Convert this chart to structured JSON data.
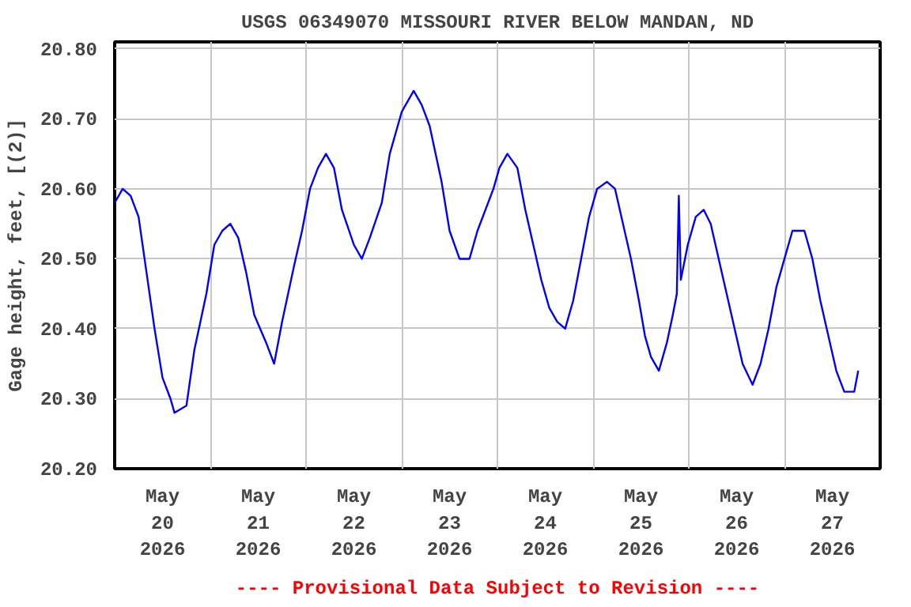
{
  "chart_data": {
    "type": "line",
    "title": "USGS 06349070 MISSOURI RIVER BELOW MANDAN, ND",
    "ylabel": "Gage height, feet, [(2)]",
    "annotations": [
      "---- Provisional Data Subject to Revision ----"
    ],
    "grid": true,
    "marker": "none",
    "line_style": "solid",
    "xlim": [
      "2026-05-20T00:00",
      "2026-05-28T00:00"
    ],
    "xticks": [
      {
        "value": "2026-05-20T00:00",
        "label": null
      },
      {
        "value": "2026-05-20T12:00",
        "label": "May\n20\n2026"
      },
      {
        "value": "2026-05-21T00:00",
        "label": null
      },
      {
        "value": "2026-05-21T12:00",
        "label": "May\n21\n2026"
      },
      {
        "value": "2026-05-22T00:00",
        "label": null
      },
      {
        "value": "2026-05-22T12:00",
        "label": "May\n22\n2026"
      },
      {
        "value": "2026-05-23T00:00",
        "label": null
      },
      {
        "value": "2026-05-23T12:00",
        "label": "May\n23\n2026"
      },
      {
        "value": "2026-05-24T00:00",
        "label": null
      },
      {
        "value": "2026-05-24T12:00",
        "label": "May\n24\n2026"
      },
      {
        "value": "2026-05-25T00:00",
        "label": null
      },
      {
        "value": "2026-05-25T12:00",
        "label": "May\n25\n2026"
      },
      {
        "value": "2026-05-26T00:00",
        "label": null
      },
      {
        "value": "2026-05-26T12:00",
        "label": "May\n26\n2026"
      },
      {
        "value": "2026-05-27T00:00",
        "label": null
      },
      {
        "value": "2026-05-27T12:00",
        "label": "May\n27\n2026"
      },
      {
        "value": "2026-05-28T00:00",
        "label": null
      }
    ],
    "ylim": [
      20.2,
      20.81
    ],
    "yticks": [
      {
        "value": 20.2,
        "label": "20.20"
      },
      {
        "value": 20.3,
        "label": "20.30"
      },
      {
        "value": 20.4,
        "label": "20.40"
      },
      {
        "value": 20.5,
        "label": "20.50"
      },
      {
        "value": 20.6,
        "label": "20.60"
      },
      {
        "value": 20.7,
        "label": "20.70"
      },
      {
        "value": 20.8,
        "label": "20.80"
      }
    ],
    "x": [
      "2026-05-20T00:00",
      "2026-05-20T02:00",
      "2026-05-20T04:00",
      "2026-05-20T06:00",
      "2026-05-20T08:00",
      "2026-05-20T10:00",
      "2026-05-20T12:00",
      "2026-05-20T14:00",
      "2026-05-20T15:00",
      "2026-05-20T18:00",
      "2026-05-20T20:00",
      "2026-05-20T23:00",
      "2026-05-21T01:00",
      "2026-05-21T03:00",
      "2026-05-21T05:00",
      "2026-05-21T07:00",
      "2026-05-21T09:00",
      "2026-05-21T11:00",
      "2026-05-21T14:00",
      "2026-05-21T16:00",
      "2026-05-21T18:00",
      "2026-05-21T21:00",
      "2026-05-21T23:00",
      "2026-05-22T01:00",
      "2026-05-22T03:00",
      "2026-05-22T05:00",
      "2026-05-22T07:00",
      "2026-05-22T09:00",
      "2026-05-22T12:00",
      "2026-05-22T14:00",
      "2026-05-22T16:00",
      "2026-05-22T19:00",
      "2026-05-22T21:00",
      "2026-05-23T00:00",
      "2026-05-23T03:00",
      "2026-05-23T05:00",
      "2026-05-23T07:00",
      "2026-05-23T10:00",
      "2026-05-23T12:00",
      "2026-05-23T14:30",
      "2026-05-23T17:00",
      "2026-05-23T19:00",
      "2026-05-23T23:00",
      "2026-05-24T00:30",
      "2026-05-24T02:30",
      "2026-05-24T05:00",
      "2026-05-24T07:00",
      "2026-05-24T09:00",
      "2026-05-24T11:00",
      "2026-05-24T13:00",
      "2026-05-24T15:00",
      "2026-05-24T17:00",
      "2026-05-24T19:00",
      "2026-05-24T21:00",
      "2026-05-24T23:00",
      "2026-05-25T01:00",
      "2026-05-25T03:30",
      "2026-05-25T05:30",
      "2026-05-25T07:30",
      "2026-05-25T09:30",
      "2026-05-25T11:30",
      "2026-05-25T13:00",
      "2026-05-25T14:30",
      "2026-05-25T16:30",
      "2026-05-25T18:30",
      "2026-05-25T20:00",
      "2026-05-25T21:00",
      "2026-05-25T21:30",
      "2026-05-25T22:00",
      "2026-05-25T23:45",
      "2026-05-26T01:45",
      "2026-05-26T03:45",
      "2026-05-26T05:30",
      "2026-05-26T07:30",
      "2026-05-26T09:30",
      "2026-05-26T11:30",
      "2026-05-26T13:30",
      "2026-05-26T16:00",
      "2026-05-26T18:00",
      "2026-05-26T20:00",
      "2026-05-26T22:00",
      "2026-05-27T00:00",
      "2026-05-27T02:00",
      "2026-05-27T05:00",
      "2026-05-27T07:00",
      "2026-05-27T09:00",
      "2026-05-27T11:00",
      "2026-05-27T13:00",
      "2026-05-27T15:00",
      "2026-05-27T17:30",
      "2026-05-27T18:30"
    ],
    "series": [
      {
        "color": "#0000ff",
        "values": [
          20.58,
          20.6,
          20.59,
          20.56,
          20.48,
          20.4,
          20.33,
          20.3,
          20.28,
          20.29,
          20.37,
          20.45,
          20.52,
          20.54,
          20.55,
          20.53,
          20.48,
          20.42,
          20.38,
          20.35,
          20.41,
          20.49,
          20.54,
          20.6,
          20.63,
          20.65,
          20.63,
          20.57,
          20.52,
          20.5,
          20.53,
          20.58,
          20.65,
          20.71,
          20.74,
          20.72,
          20.69,
          20.61,
          20.54,
          20.5,
          20.5,
          20.54,
          20.6,
          20.63,
          20.65,
          20.63,
          20.57,
          20.52,
          20.47,
          20.43,
          20.41,
          20.4,
          20.44,
          20.5,
          20.56,
          20.6,
          20.61,
          20.6,
          20.55,
          20.5,
          20.44,
          20.39,
          20.36,
          20.34,
          20.38,
          20.42,
          20.45,
          20.59,
          20.47,
          20.52,
          20.56,
          20.57,
          20.55,
          20.5,
          20.45,
          20.4,
          20.35,
          20.32,
          20.35,
          20.4,
          20.46,
          20.5,
          20.54,
          20.54,
          20.5,
          20.44,
          20.39,
          20.34,
          20.31,
          20.31,
          20.34
        ]
      }
    ]
  }
}
